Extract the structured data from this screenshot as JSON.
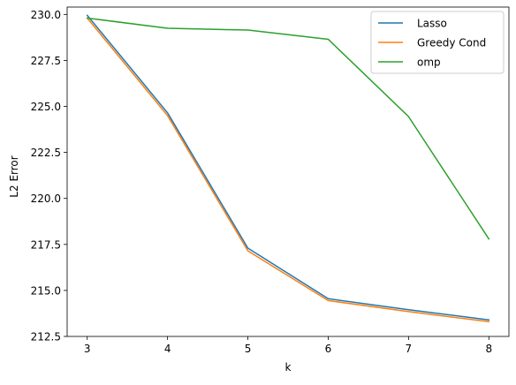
{
  "chart_data": {
    "type": "line",
    "title": "",
    "xlabel": "k",
    "ylabel": "L2 Error",
    "x": [
      3,
      4,
      5,
      6,
      7,
      8
    ],
    "xlim": [
      2.75,
      8.25
    ],
    "ylim": [
      212.5,
      230.4
    ],
    "x_ticks": [
      3,
      4,
      5,
      6,
      7,
      8
    ],
    "x_tick_labels": [
      "3",
      "4",
      "5",
      "6",
      "7",
      "8"
    ],
    "y_ticks": [
      212.5,
      215.0,
      217.5,
      220.0,
      222.5,
      225.0,
      227.5,
      230.0
    ],
    "y_tick_labels": [
      "212.5",
      "215.0",
      "217.5",
      "220.0",
      "222.5",
      "225.0",
      "227.5",
      "230.0"
    ],
    "grid": false,
    "legend_position": "top-right",
    "series": [
      {
        "name": "Lasso",
        "color": "#1f77b4",
        "values": [
          229.95,
          224.65,
          217.3,
          214.55,
          213.95,
          213.4
        ]
      },
      {
        "name": "Greedy Cond",
        "color": "#ff7f0e",
        "values": [
          229.8,
          224.5,
          217.15,
          214.45,
          213.85,
          213.3
        ]
      },
      {
        "name": "omp",
        "color": "#2ca02c",
        "values": [
          229.8,
          229.25,
          229.15,
          228.65,
          224.45,
          217.8
        ]
      }
    ]
  }
}
